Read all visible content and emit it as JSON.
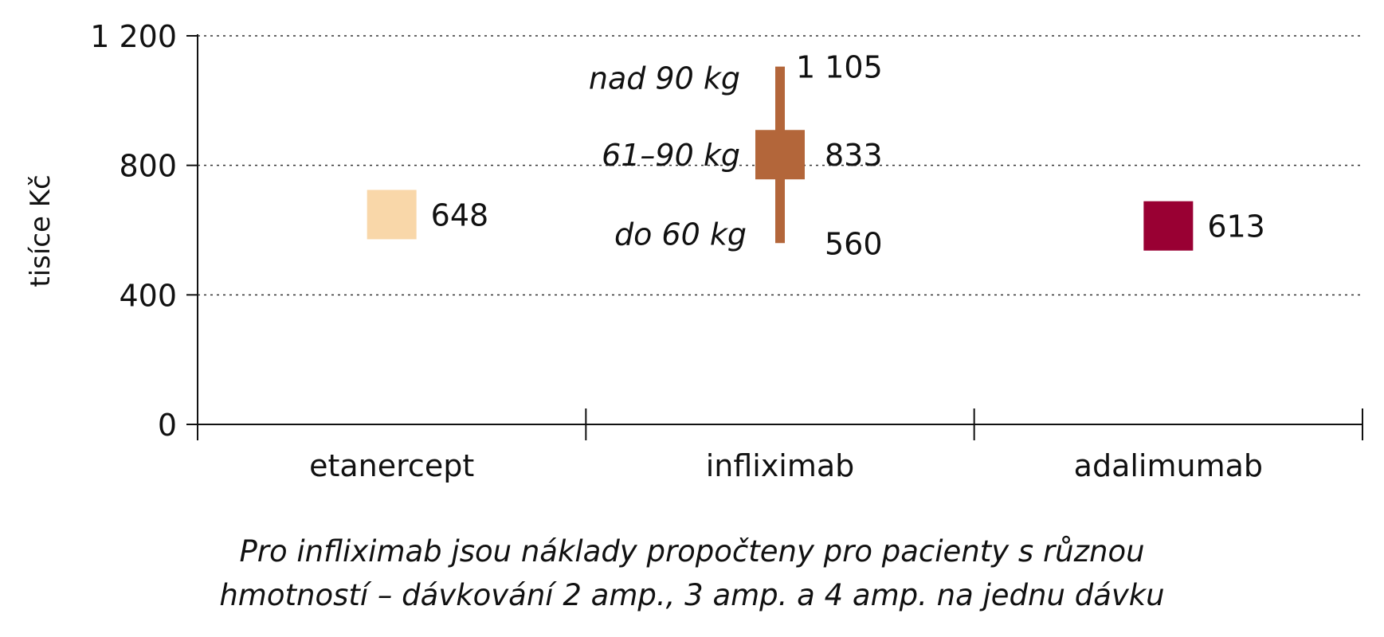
{
  "chart_data": {
    "type": "range",
    "ylabel": "tisíce Kč",
    "ylim": [
      0,
      1200
    ],
    "yticks": [
      0,
      400,
      800,
      1200
    ],
    "ytick_labels": [
      "0",
      "400",
      "800",
      "1 200"
    ],
    "grid": "horizontal dotted",
    "categories": [
      "etanercept",
      "infliximab",
      "adalimumab"
    ],
    "points": [
      {
        "category": "etanercept",
        "value": 648,
        "label": "648",
        "color": "#F9D7A9"
      },
      {
        "category": "infliximab",
        "value": 833,
        "label": "833",
        "color": "#B3663A"
      },
      {
        "category": "adalimumab",
        "value": 613,
        "label": "613",
        "color": "#990033"
      }
    ],
    "infliximab_range": {
      "low": 560,
      "low_label": "560",
      "high": 1105,
      "high_label": "1 105",
      "weight_labels": {
        "high": "nad 90 kg",
        "mid": "61–90 kg",
        "low": "do 60 kg"
      }
    }
  },
  "caption": {
    "line1": "Pro infliximab jsou náklady propočteny pro pacienty s různou",
    "line2": "hmotností – dávkování 2 amp., 3 amp. a 4 amp. na jednu dávku"
  }
}
